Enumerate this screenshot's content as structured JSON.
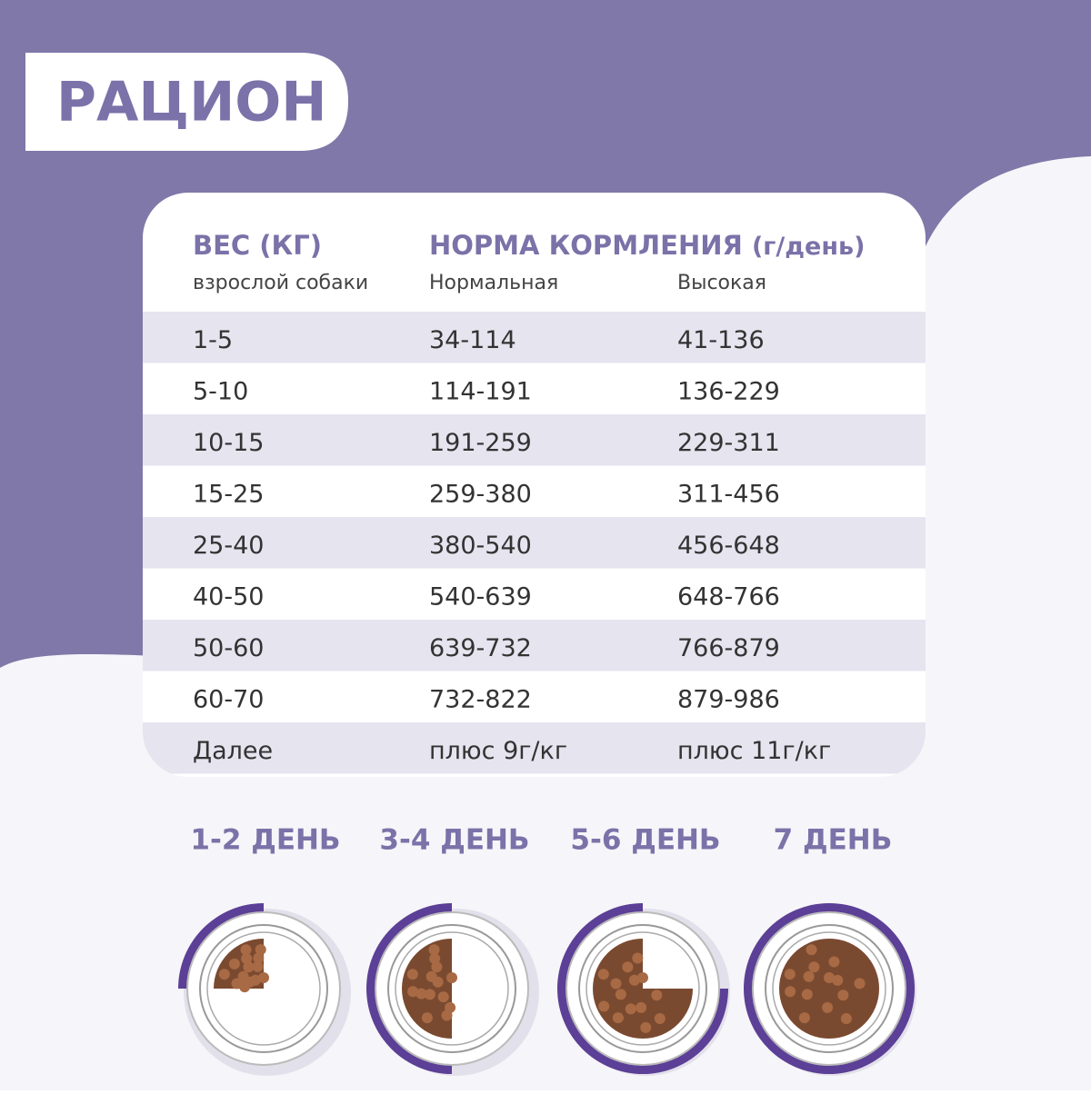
{
  "header": {
    "title": "РАЦИОН"
  },
  "table": {
    "weight_header": "ВЕС (КГ)",
    "weight_sub": "взрослой собаки",
    "norm_header": "НОРМА КОРМЛЕНИЯ",
    "norm_unit": "(г/день)",
    "normal_header": "Нормальная",
    "high_header": "Высокая",
    "rows": [
      [
        "1-5",
        "34-114",
        "41-136"
      ],
      [
        "5-10",
        "114-191",
        "136-229"
      ],
      [
        "10-15",
        "191-259",
        "229-311"
      ],
      [
        "15-25",
        "259-380",
        "311-456"
      ],
      [
        "25-40",
        "380-540",
        "456-648"
      ],
      [
        "40-50",
        "540-639",
        "648-766"
      ],
      [
        "50-60",
        "639-732",
        "766-879"
      ],
      [
        "60-70",
        "732-822",
        "879-986"
      ],
      [
        "Далее",
        "плюс 9г/кг",
        "плюс 11г/кг"
      ]
    ]
  },
  "days": [
    "1-2 ДЕНЬ",
    "3-4 ДЕНЬ",
    "5-6 ДЕНЬ",
    "7 ДЕНЬ"
  ]
}
